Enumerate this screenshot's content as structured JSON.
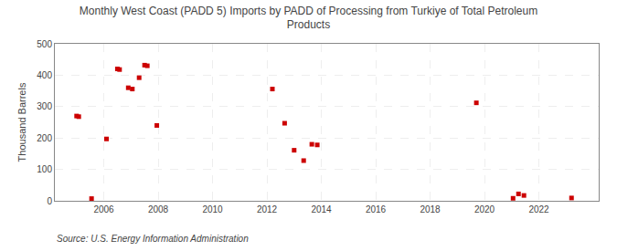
{
  "chart_data": {
    "type": "scatter",
    "title": "Monthly West Coast (PADD 5) Imports by PADD of Processing from Turkiye of Total Petroleum\nProducts",
    "ylabel": "Thousand Barrels",
    "annotations": [
      "Source: U.S. Energy Information Administration"
    ],
    "x": [
      2005.0,
      2005.08,
      2005.55,
      2006.1,
      2006.5,
      2006.58,
      2006.9,
      2007.05,
      2007.3,
      2007.5,
      2007.6,
      2007.95,
      2012.2,
      2012.65,
      2013.0,
      2013.35,
      2013.65,
      2013.85,
      2019.7,
      2021.05,
      2021.25,
      2021.45,
      2023.2
    ],
    "values": [
      270,
      268,
      7,
      197,
      420,
      418,
      360,
      356,
      392,
      432,
      430,
      240,
      356,
      247,
      161,
      128,
      180,
      178,
      312,
      8,
      22,
      17,
      9
    ],
    "xlim": [
      2004.2,
      2024.2
    ],
    "xticks": [
      2006,
      2008,
      2010,
      2012,
      2014,
      2016,
      2018,
      2020,
      2022
    ],
    "ylim": [
      0,
      500
    ],
    "yticks": [
      0,
      100,
      200,
      300,
      400,
      500
    ],
    "color": "#cc0000",
    "marker": "square",
    "grid": true
  }
}
